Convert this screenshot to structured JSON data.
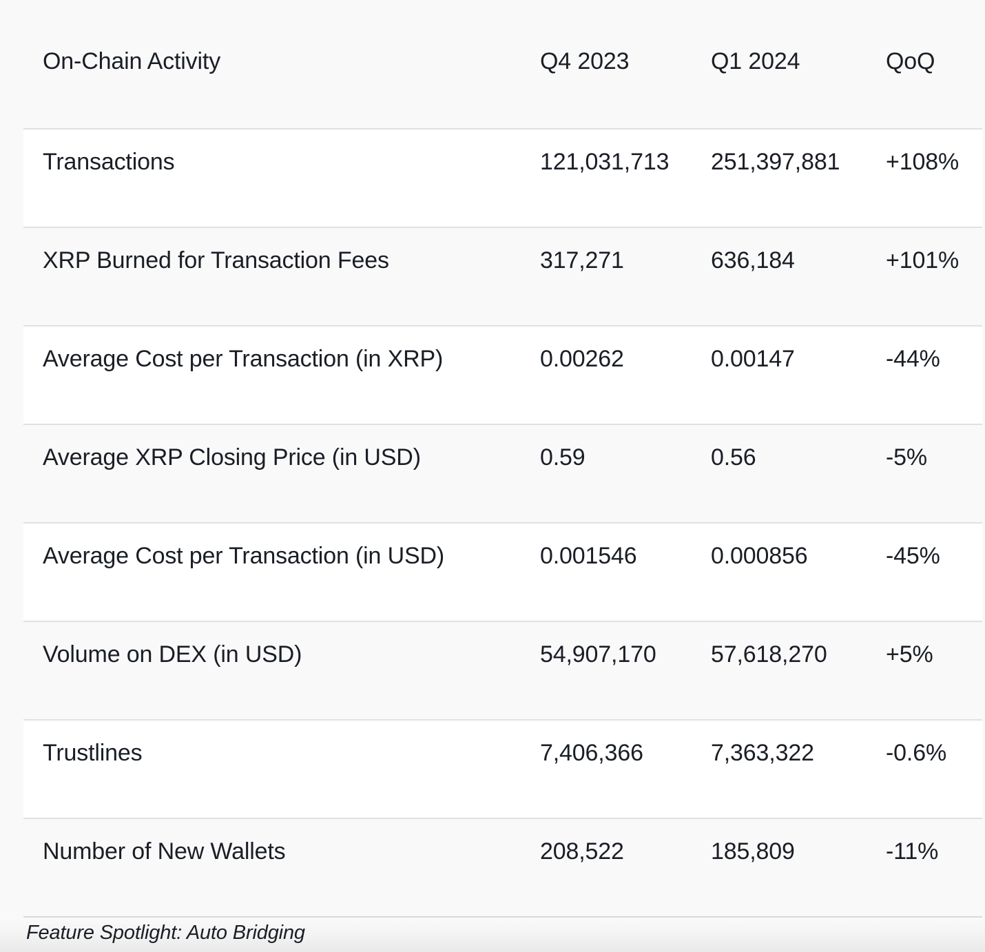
{
  "page": {
    "background_color": "#f9f9f9",
    "row_background_color": "#ffffff",
    "divider_color": "#e1e1e1",
    "text_color": "#1a1e25"
  },
  "table": {
    "columns": [
      "On-Chain Activity",
      "Q4 2023",
      "Q1 2024",
      "QoQ"
    ],
    "rows": [
      {
        "label": "Transactions",
        "q4": "121,031,713",
        "q1": "251,397,881",
        "qoq": "+108%"
      },
      {
        "label": "XRP Burned for Transaction Fees",
        "q4": "317,271",
        "q1": "636,184",
        "qoq": "+101%"
      },
      {
        "label": "Average Cost per Transaction (in XRP)",
        "q4": "0.00262",
        "q1": "0.00147",
        "qoq": "-44%"
      },
      {
        "label": "Average XRP Closing Price (in USD)",
        "q4": "0.59",
        "q1": "0.56",
        "qoq": "-5%"
      },
      {
        "label": "Average Cost per Transaction (in USD)",
        "q4": "0.001546",
        "q1": "0.000856",
        "qoq": "-45%"
      },
      {
        "label": "Volume on DEX (in USD)",
        "q4": "54,907,170",
        "q1": "57,618,270",
        "qoq": "+5%"
      },
      {
        "label": "Trustlines",
        "q4": "7,406,366",
        "q1": "7,363,322",
        "qoq": "-0.6%"
      },
      {
        "label": "Number of New Wallets",
        "q4": "208,522",
        "q1": "185,809",
        "qoq": "-11%"
      }
    ]
  },
  "footer": {
    "caption": "Feature Spotlight: Auto Bridging"
  }
}
